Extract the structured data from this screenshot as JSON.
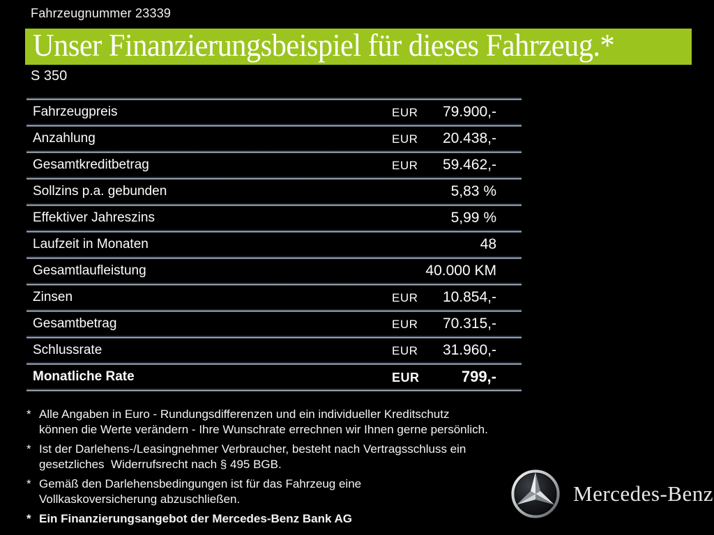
{
  "page": {
    "vehicle_number": "Fahrzeugnummer 23339",
    "title": "Unser Finanzierungsbeispiel für dieses Fahrzeug.*",
    "model": "S 350"
  },
  "colors": {
    "background": "#000000",
    "accent_green": "#9bc41f",
    "separator_line": "#c8ced4",
    "text": "#ffffff"
  },
  "table": {
    "rows": [
      {
        "label": "Fahrzeugpreis",
        "currency": "EUR",
        "value": "79.900,-",
        "bold": false
      },
      {
        "label": "Anzahlung",
        "currency": "EUR",
        "value": "20.438,-",
        "bold": false
      },
      {
        "label": "Gesamtkreditbetrag",
        "currency": "EUR",
        "value": "59.462,-",
        "bold": false
      },
      {
        "label": "Sollzins p.a. gebunden",
        "currency": "",
        "value": "5,83 %",
        "bold": false
      },
      {
        "label": "Effektiver Jahreszins",
        "currency": "",
        "value": "5,99 %",
        "bold": false
      },
      {
        "label": "Laufzeit in Monaten",
        "currency": "",
        "value": "48",
        "bold": false
      },
      {
        "label": "Gesamtlaufleistung",
        "currency": "",
        "value": "40.000 KM",
        "bold": false
      },
      {
        "label": "Zinsen",
        "currency": "EUR",
        "value": "10.854,-",
        "bold": false
      },
      {
        "label": "Gesamtbetrag",
        "currency": "EUR",
        "value": "70.315,-",
        "bold": false
      },
      {
        "label": "Schlussrate",
        "currency": "EUR",
        "value": "31.960,-",
        "bold": false
      },
      {
        "label": "Monatliche Rate",
        "currency": "EUR",
        "value": "799,-",
        "bold": true
      }
    ]
  },
  "footnotes": [
    {
      "marker": "*",
      "text": "Alle Angaben in Euro - Rundungsdifferenzen und ein individueller Kreditschutz\nkönnen die Werte verändern - Ihre Wunschrate errechnen wir Ihnen gerne persönlich."
    },
    {
      "marker": "*",
      "text": "Ist der Darlehens-/Leasingnehmer Verbraucher, besteht nach Vertragsschluss ein\ngesetzliches  Widerrufsrecht nach § 495 BGB."
    },
    {
      "marker": "*",
      "text": "Gemäß den Darlehensbedingungen ist für das Fahrzeug eine\nVollkaskoversicherung abzuschließen."
    },
    {
      "marker": "*",
      "text": "Ein Finanzierungsangebot der Mercedes-Benz Bank AG"
    }
  ],
  "brand": {
    "star_icon": "mercedes-star-icon",
    "wordmark": "Mercedes-Benz"
  }
}
